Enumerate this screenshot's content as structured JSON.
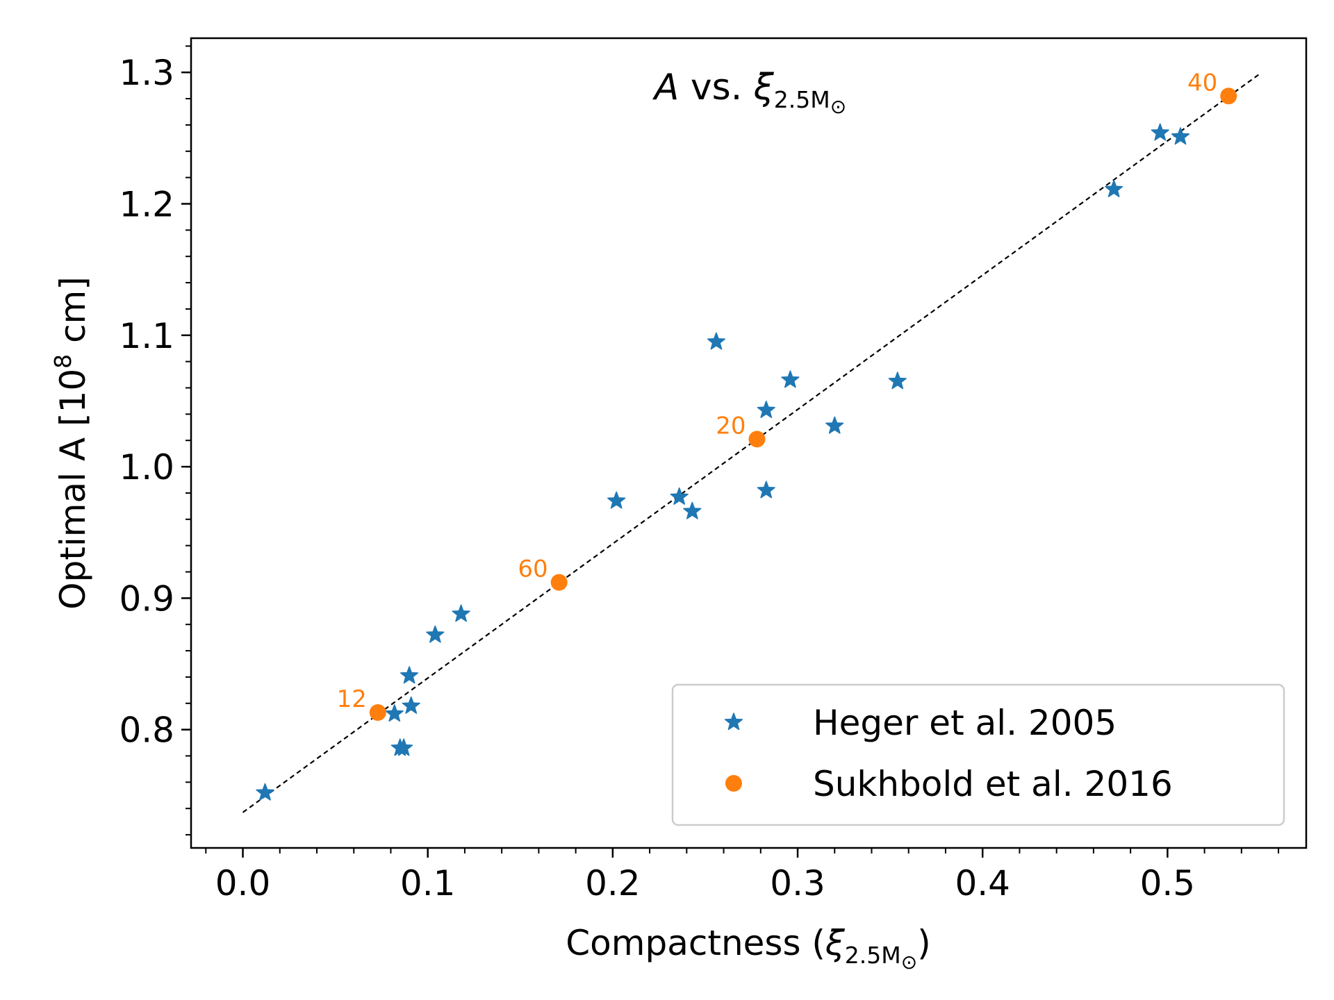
{
  "chart_data": {
    "type": "scatter",
    "title": {
      "symbol": "A",
      "text": " vs. ",
      "xi": "ξ",
      "sub": "2.5M",
      "sun": "⊙"
    },
    "xlabel": {
      "text": "Compactness (",
      "xi": "ξ",
      "sub": "2.5M",
      "sun": "⊙",
      "close": ")"
    },
    "ylabel": {
      "text": "Optimal A [10",
      "sup": "8",
      "unit": " cm]"
    },
    "xlim": [
      -0.028,
      0.575
    ],
    "ylim": [
      0.71,
      1.326
    ],
    "xticks": [
      0.0,
      0.1,
      0.2,
      0.3,
      0.4,
      0.5
    ],
    "xtick_labels": [
      "0.0",
      "0.1",
      "0.2",
      "0.3",
      "0.4",
      "0.5"
    ],
    "yticks": [
      0.8,
      0.9,
      1.0,
      1.1,
      1.2,
      1.3
    ],
    "ytick_labels": [
      "0.8",
      "0.9",
      "1.0",
      "1.1",
      "1.2",
      "1.3"
    ],
    "x_minor_step": 0.02,
    "y_minor_step": 0.02,
    "fit_line": {
      "x": [
        0.0,
        0.55
      ],
      "y": [
        0.737,
        1.299
      ],
      "style": "dashed",
      "color": "#000000"
    },
    "legend_position": "lower-right",
    "series": [
      {
        "name": "Heger et al. 2005",
        "marker": "star",
        "color": "#1f77b4",
        "points": [
          {
            "x": 0.012,
            "y": 0.752
          },
          {
            "x": 0.082,
            "y": 0.812
          },
          {
            "x": 0.085,
            "y": 0.786
          },
          {
            "x": 0.087,
            "y": 0.786
          },
          {
            "x": 0.09,
            "y": 0.841
          },
          {
            "x": 0.091,
            "y": 0.818
          },
          {
            "x": 0.104,
            "y": 0.872
          },
          {
            "x": 0.118,
            "y": 0.888
          },
          {
            "x": 0.202,
            "y": 0.974
          },
          {
            "x": 0.236,
            "y": 0.977
          },
          {
            "x": 0.243,
            "y": 0.966
          },
          {
            "x": 0.256,
            "y": 1.095
          },
          {
            "x": 0.283,
            "y": 1.043
          },
          {
            "x": 0.283,
            "y": 0.982
          },
          {
            "x": 0.296,
            "y": 1.066
          },
          {
            "x": 0.32,
            "y": 1.031
          },
          {
            "x": 0.354,
            "y": 1.065
          },
          {
            "x": 0.471,
            "y": 1.211
          },
          {
            "x": 0.496,
            "y": 1.254
          },
          {
            "x": 0.507,
            "y": 1.251
          }
        ]
      },
      {
        "name": "Sukhbold et al. 2016",
        "marker": "circle",
        "color": "#ff7f0e",
        "points": [
          {
            "x": 0.073,
            "y": 0.813,
            "label": "12"
          },
          {
            "x": 0.171,
            "y": 0.912,
            "label": "60"
          },
          {
            "x": 0.278,
            "y": 1.021,
            "label": "20"
          },
          {
            "x": 0.533,
            "y": 1.282,
            "label": "40"
          }
        ]
      }
    ]
  }
}
